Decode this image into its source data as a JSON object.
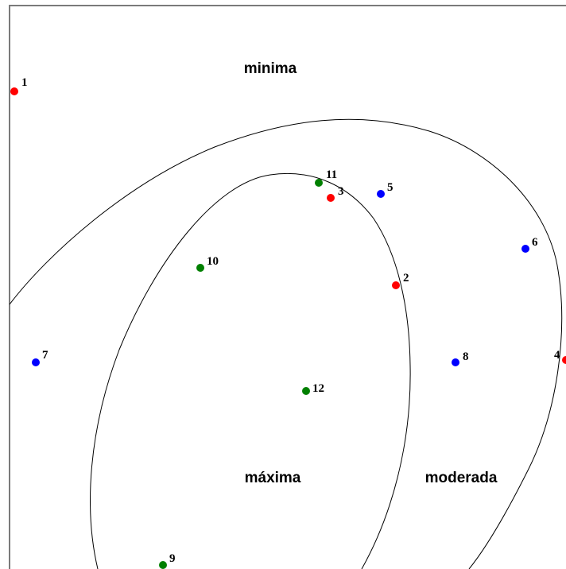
{
  "regions": {
    "minima": "minima",
    "maxima": "máxima",
    "moderada": "moderada"
  },
  "colors": {
    "red": "#ff0000",
    "blue": "#0000ff",
    "green": "#008000",
    "curve": "#000000",
    "frame": "#7a7a7a"
  },
  "points": [
    {
      "label": "1",
      "color": "red"
    },
    {
      "label": "2",
      "color": "red"
    },
    {
      "label": "3",
      "color": "red"
    },
    {
      "label": "4",
      "color": "red"
    },
    {
      "label": "5",
      "color": "blue"
    },
    {
      "label": "6",
      "color": "blue"
    },
    {
      "label": "7",
      "color": "blue"
    },
    {
      "label": "8",
      "color": "blue"
    },
    {
      "label": "9",
      "color": "green"
    },
    {
      "label": "10",
      "color": "green"
    },
    {
      "label": "11",
      "color": "green"
    },
    {
      "label": "12",
      "color": "green"
    }
  ]
}
